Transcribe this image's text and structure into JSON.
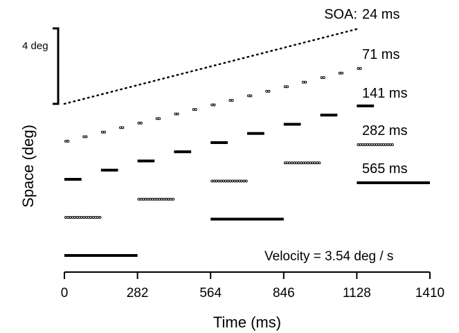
{
  "chart_data": {
    "type": "scatter",
    "title": "",
    "xlabel": "Time (ms)",
    "ylabel": "Space (deg)",
    "xlim": [
      0,
      1410
    ],
    "x_ticks": [
      "0",
      "282",
      "564",
      "846",
      "1128",
      "1410"
    ],
    "scale_bar_label": "4 deg",
    "velocity_label": "Velocity = 3.54 deg / s",
    "soa_prefix": "SOA:",
    "series": [
      {
        "name": "24 ms",
        "style": "line",
        "segments": [
          {
            "start": 0,
            "end": 1128,
            "space": 0
          }
        ]
      },
      {
        "name": "71 ms",
        "style": "dots",
        "segments": [
          {
            "start": 0,
            "end": 25,
            "space": 0
          },
          {
            "start": 70,
            "end": 95,
            "space": 0
          },
          {
            "start": 141,
            "end": 166,
            "space": 0
          },
          {
            "start": 211,
            "end": 236,
            "space": 0
          },
          {
            "start": 282,
            "end": 307,
            "space": 0
          },
          {
            "start": 352,
            "end": 377,
            "space": 0
          },
          {
            "start": 423,
            "end": 448,
            "space": 0
          },
          {
            "start": 493,
            "end": 518,
            "space": 0
          },
          {
            "start": 564,
            "end": 589,
            "space": 0
          },
          {
            "start": 634,
            "end": 659,
            "space": 0
          },
          {
            "start": 705,
            "end": 730,
            "space": 0
          },
          {
            "start": 775,
            "end": 800,
            "space": 0
          },
          {
            "start": 846,
            "end": 871,
            "space": 0
          },
          {
            "start": 916,
            "end": 941,
            "space": 0
          },
          {
            "start": 987,
            "end": 1012,
            "space": 0
          },
          {
            "start": 1057,
            "end": 1082,
            "space": 0
          },
          {
            "start": 1128,
            "end": 1153,
            "space": 0
          }
        ]
      },
      {
        "name": "141 ms",
        "style": "bar",
        "segments": [
          {
            "start": 0,
            "end": 66,
            "space": 0
          },
          {
            "start": 141,
            "end": 207,
            "space": 0
          },
          {
            "start": 282,
            "end": 348,
            "space": 0
          },
          {
            "start": 423,
            "end": 489,
            "space": 0
          },
          {
            "start": 564,
            "end": 630,
            "space": 0
          },
          {
            "start": 705,
            "end": 771,
            "space": 0
          },
          {
            "start": 846,
            "end": 912,
            "space": 0
          },
          {
            "start": 987,
            "end": 1053,
            "space": 0
          },
          {
            "start": 1128,
            "end": 1194,
            "space": 0
          }
        ]
      },
      {
        "name": "282 ms",
        "style": "dots",
        "segments": [
          {
            "start": 0,
            "end": 141,
            "space": 0
          },
          {
            "start": 282,
            "end": 423,
            "space": 0
          },
          {
            "start": 564,
            "end": 705,
            "space": 0
          },
          {
            "start": 846,
            "end": 987,
            "space": 0
          },
          {
            "start": 1128,
            "end": 1269,
            "space": 0
          }
        ]
      },
      {
        "name": "565 ms",
        "style": "bar",
        "segments": [
          {
            "start": 0,
            "end": 282,
            "space": 0
          },
          {
            "start": 564,
            "end": 846,
            "space": 0
          },
          {
            "start": 1128,
            "end": 1410,
            "space": 0
          }
        ]
      }
    ]
  }
}
